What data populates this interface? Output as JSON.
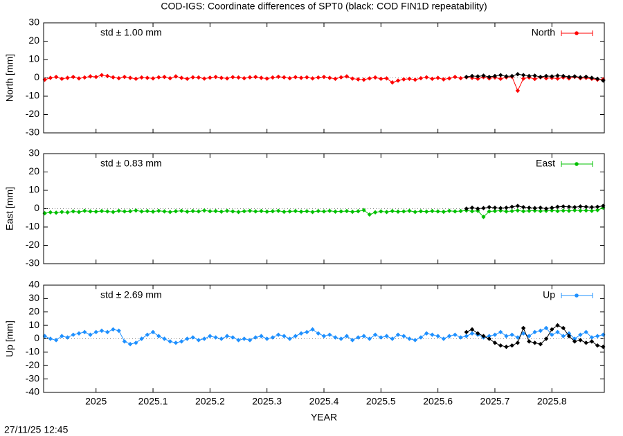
{
  "timestamp": "27/11/25 12:45",
  "chart_data": [
    {
      "type": "line",
      "title": "COD-IGS: Coordinate differences of SPT0 (black: COD FIN1D repeatability)",
      "ylabel": "North [mm]",
      "annotation": "std ± 1.00 mm",
      "xlim": [
        2024.908,
        2025.892
      ],
      "xticks": [
        2025,
        2025.1,
        2025.2,
        2025.3,
        2025.4,
        2025.5,
        2025.6,
        2025.7,
        2025.8
      ],
      "ylim": [
        -30,
        30
      ],
      "yticks": [
        -30,
        -20,
        -10,
        0,
        10,
        20,
        30
      ],
      "x": [
        2024.91,
        2024.92,
        2024.93,
        2024.94,
        2024.95,
        2024.96,
        2024.97,
        2024.98,
        2024.99,
        2025.0,
        2025.01,
        2025.02,
        2025.03,
        2025.04,
        2025.05,
        2025.06,
        2025.07,
        2025.08,
        2025.09,
        2025.1,
        2025.11,
        2025.12,
        2025.13,
        2025.14,
        2025.15,
        2025.16,
        2025.17,
        2025.18,
        2025.19,
        2025.2,
        2025.21,
        2025.22,
        2025.23,
        2025.24,
        2025.25,
        2025.26,
        2025.27,
        2025.28,
        2025.29,
        2025.3,
        2025.31,
        2025.32,
        2025.33,
        2025.34,
        2025.35,
        2025.36,
        2025.37,
        2025.38,
        2025.39,
        2025.4,
        2025.41,
        2025.42,
        2025.43,
        2025.44,
        2025.45,
        2025.46,
        2025.47,
        2025.48,
        2025.49,
        2025.5,
        2025.51,
        2025.52,
        2025.53,
        2025.54,
        2025.55,
        2025.56,
        2025.57,
        2025.58,
        2025.59,
        2025.6,
        2025.61,
        2025.62,
        2025.63,
        2025.64,
        2025.65,
        2025.66,
        2025.67,
        2025.68,
        2025.69,
        2025.7,
        2025.71,
        2025.72,
        2025.73,
        2025.74,
        2025.75,
        2025.76,
        2025.77,
        2025.78,
        2025.79,
        2025.8,
        2025.81,
        2025.82,
        2025.83,
        2025.84,
        2025.85,
        2025.86,
        2025.87,
        2025.88,
        2025.89
      ],
      "series": [
        {
          "name": "North",
          "color": "#ff0000",
          "values": [
            -1,
            0,
            0.5,
            -0.5,
            0,
            0.5,
            -0.3,
            0.2,
            0.8,
            0.5,
            1.5,
            1,
            0.3,
            -0.2,
            0.5,
            0,
            -0.5,
            0.2,
            0,
            -0.3,
            0.3,
            0.5,
            -0.2,
            0.8,
            0,
            -0.5,
            0.3,
            0.2,
            -0.4,
            0.1,
            0.5,
            0,
            -0.3,
            0.4,
            0.2,
            -0.2,
            0.3,
            0.5,
            0,
            -0.4,
            0.2,
            0.6,
            0.3,
            -0.2,
            0.4,
            0,
            0.3,
            -0.3,
            0.2,
            0.5,
            0,
            -0.5,
            0.3,
            0.8,
            -0.4,
            -0.8,
            -1,
            -0.3,
            0.2,
            -0.5,
            -0.3,
            -2.5,
            -1.5,
            -0.8,
            -0.5,
            -1,
            -0.2,
            0.3,
            -0.5,
            0,
            -0.8,
            -0.3,
            0.5,
            -0.2,
            0.3,
            0,
            -0.5,
            0.4,
            -0.3,
            0.2,
            -0.5,
            0.3,
            0.6,
            -7,
            -0.4,
            0.2,
            -0.6,
            0.3,
            -0.2,
            0,
            -0.4,
            0.2,
            -0.3,
            0.5,
            -0.2,
            0,
            -0.5,
            -1,
            -0.8
          ]
        },
        {
          "color": "#000000",
          "values": [
            null,
            null,
            null,
            null,
            null,
            null,
            null,
            null,
            null,
            null,
            null,
            null,
            null,
            null,
            null,
            null,
            null,
            null,
            null,
            null,
            null,
            null,
            null,
            null,
            null,
            null,
            null,
            null,
            null,
            null,
            null,
            null,
            null,
            null,
            null,
            null,
            null,
            null,
            null,
            null,
            null,
            null,
            null,
            null,
            null,
            null,
            null,
            null,
            null,
            null,
            null,
            null,
            null,
            null,
            null,
            null,
            null,
            null,
            null,
            null,
            null,
            null,
            null,
            null,
            null,
            null,
            null,
            null,
            null,
            null,
            null,
            null,
            null,
            null,
            0.5,
            1,
            0.8,
            1.2,
            0.5,
            1,
            1.5,
            0.8,
            1,
            2,
            1.5,
            1,
            1.2,
            0.5,
            1,
            0.8,
            1.2,
            1,
            0.5,
            0.8,
            0.3,
            0.6,
            0,
            -0.5,
            -1.5
          ]
        }
      ]
    },
    {
      "type": "line",
      "ylabel": "East [mm]",
      "annotation": "std ± 0.83 mm",
      "xlim": [
        2024.908,
        2025.892
      ],
      "xticks": [
        2025,
        2025.1,
        2025.2,
        2025.3,
        2025.4,
        2025.5,
        2025.6,
        2025.7,
        2025.8
      ],
      "ylim": [
        -30,
        30
      ],
      "yticks": [
        -30,
        -20,
        -10,
        0,
        10,
        20,
        30
      ],
      "x": [
        2024.91,
        2024.92,
        2024.93,
        2024.94,
        2024.95,
        2024.96,
        2024.97,
        2024.98,
        2024.99,
        2025.0,
        2025.01,
        2025.02,
        2025.03,
        2025.04,
        2025.05,
        2025.06,
        2025.07,
        2025.08,
        2025.09,
        2025.1,
        2025.11,
        2025.12,
        2025.13,
        2025.14,
        2025.15,
        2025.16,
        2025.17,
        2025.18,
        2025.19,
        2025.2,
        2025.21,
        2025.22,
        2025.23,
        2025.24,
        2025.25,
        2025.26,
        2025.27,
        2025.28,
        2025.29,
        2025.3,
        2025.31,
        2025.32,
        2025.33,
        2025.34,
        2025.35,
        2025.36,
        2025.37,
        2025.38,
        2025.39,
        2025.4,
        2025.41,
        2025.42,
        2025.43,
        2025.44,
        2025.45,
        2025.46,
        2025.47,
        2025.48,
        2025.49,
        2025.5,
        2025.51,
        2025.52,
        2025.53,
        2025.54,
        2025.55,
        2025.56,
        2025.57,
        2025.58,
        2025.59,
        2025.6,
        2025.61,
        2025.62,
        2025.63,
        2025.64,
        2025.65,
        2025.66,
        2025.67,
        2025.68,
        2025.69,
        2025.7,
        2025.71,
        2025.72,
        2025.73,
        2025.74,
        2025.75,
        2025.76,
        2025.77,
        2025.78,
        2025.79,
        2025.8,
        2025.81,
        2025.82,
        2025.83,
        2025.84,
        2025.85,
        2025.86,
        2025.87,
        2025.88,
        2025.89
      ],
      "series": [
        {
          "name": "East",
          "color": "#00c000",
          "values": [
            -2.5,
            -2,
            -2.2,
            -1.8,
            -2,
            -1.5,
            -1.8,
            -1.2,
            -1.5,
            -1.6,
            -1.3,
            -1.5,
            -1.8,
            -1.2,
            -1.5,
            -1.4,
            -1,
            -1.5,
            -1.3,
            -1.6,
            -1.2,
            -1.5,
            -1.8,
            -1.4,
            -1.2,
            -1.6,
            -1.3,
            -1.5,
            -1,
            -1.4,
            -1.3,
            -1.6,
            -1.2,
            -1.5,
            -1.8,
            -1.4,
            -1.2,
            -1.5,
            -1.3,
            -1.6,
            -1.4,
            -1.2,
            -1.7,
            -1.5,
            -1.3,
            -1.6,
            -1.4,
            -1.8,
            -1.3,
            -1.5,
            -1.2,
            -1.6,
            -1.5,
            -1.3,
            -1.7,
            -1.4,
            -0.8,
            -3.2,
            -2,
            -1.5,
            -1.8,
            -1.3,
            -1.6,
            -1.5,
            -1.2,
            -1.8,
            -1.4,
            -1.6,
            -1.3,
            -1.5,
            -1.7,
            -1.2,
            -1.5,
            -1.3,
            -1,
            -1.4,
            -1.2,
            -4.5,
            -1.5,
            -1.3,
            -1.1,
            -1.5,
            -1.3,
            -1,
            -1.4,
            -1.2,
            -1.1,
            -1.3,
            -1.2,
            -1,
            -1.3,
            -1.1,
            -1.2,
            -0.9,
            -1.1,
            -1,
            -1.2,
            -0.8,
            0.5
          ]
        },
        {
          "color": "#000000",
          "values": [
            null,
            null,
            null,
            null,
            null,
            null,
            null,
            null,
            null,
            null,
            null,
            null,
            null,
            null,
            null,
            null,
            null,
            null,
            null,
            null,
            null,
            null,
            null,
            null,
            null,
            null,
            null,
            null,
            null,
            null,
            null,
            null,
            null,
            null,
            null,
            null,
            null,
            null,
            null,
            null,
            null,
            null,
            null,
            null,
            null,
            null,
            null,
            null,
            null,
            null,
            null,
            null,
            null,
            null,
            null,
            null,
            null,
            null,
            null,
            null,
            null,
            null,
            null,
            null,
            null,
            null,
            null,
            null,
            null,
            null,
            null,
            null,
            null,
            null,
            0,
            0.5,
            0,
            0.3,
            0.8,
            0.5,
            0.3,
            0.5,
            1,
            1.5,
            0.8,
            0.5,
            0.3,
            0.5,
            0,
            0.5,
            1,
            1.2,
            1,
            0.8,
            1.2,
            1,
            0.8,
            1,
            1.5
          ]
        }
      ]
    },
    {
      "type": "line",
      "ylabel": "Up [mm]",
      "annotation": "std ± 2.69 mm",
      "xlabel": "YEAR",
      "xlim": [
        2024.908,
        2025.892
      ],
      "xticks": [
        2025,
        2025.1,
        2025.2,
        2025.3,
        2025.4,
        2025.5,
        2025.6,
        2025.7,
        2025.8
      ],
      "ylim": [
        -40,
        40
      ],
      "yticks": [
        -40,
        -30,
        -20,
        -10,
        0,
        10,
        20,
        30,
        40
      ],
      "x": [
        2024.91,
        2024.92,
        2024.93,
        2024.94,
        2024.95,
        2024.96,
        2024.97,
        2024.98,
        2024.99,
        2025.0,
        2025.01,
        2025.02,
        2025.03,
        2025.04,
        2025.05,
        2025.06,
        2025.07,
        2025.08,
        2025.09,
        2025.1,
        2025.11,
        2025.12,
        2025.13,
        2025.14,
        2025.15,
        2025.16,
        2025.17,
        2025.18,
        2025.19,
        2025.2,
        2025.21,
        2025.22,
        2025.23,
        2025.24,
        2025.25,
        2025.26,
        2025.27,
        2025.28,
        2025.29,
        2025.3,
        2025.31,
        2025.32,
        2025.33,
        2025.34,
        2025.35,
        2025.36,
        2025.37,
        2025.38,
        2025.39,
        2025.4,
        2025.41,
        2025.42,
        2025.43,
        2025.44,
        2025.45,
        2025.46,
        2025.47,
        2025.48,
        2025.49,
        2025.5,
        2025.51,
        2025.52,
        2025.53,
        2025.54,
        2025.55,
        2025.56,
        2025.57,
        2025.58,
        2025.59,
        2025.6,
        2025.61,
        2025.62,
        2025.63,
        2025.64,
        2025.65,
        2025.66,
        2025.67,
        2025.68,
        2025.69,
        2025.7,
        2025.71,
        2025.72,
        2025.73,
        2025.74,
        2025.75,
        2025.76,
        2025.77,
        2025.78,
        2025.79,
        2025.8,
        2025.81,
        2025.82,
        2025.83,
        2025.84,
        2025.85,
        2025.86,
        2025.87,
        2025.88,
        2025.89
      ],
      "series": [
        {
          "name": "Up",
          "color": "#1e90ff",
          "values": [
            2,
            0,
            -1,
            2,
            1,
            3,
            4,
            5,
            3,
            5,
            6,
            5,
            7,
            6,
            -2,
            -4,
            -3,
            0,
            3,
            5,
            2,
            0,
            -2,
            -3,
            -2,
            0,
            1,
            -1,
            0,
            2,
            1,
            0,
            2,
            1,
            -1,
            0,
            -1,
            1,
            2,
            0,
            1,
            3,
            2,
            0,
            2,
            4,
            5,
            7,
            4,
            2,
            3,
            1,
            0,
            2,
            -1,
            1,
            2,
            0,
            3,
            1,
            2,
            0,
            3,
            2,
            0,
            -1,
            1,
            4,
            3,
            2,
            0,
            2,
            3,
            1,
            2,
            4,
            3,
            1,
            2,
            3,
            5,
            2,
            3,
            1,
            4,
            2,
            5,
            6,
            8,
            3,
            5,
            2,
            4,
            0,
            3,
            5,
            1,
            2,
            3
          ]
        },
        {
          "color": "#000000",
          "values": [
            null,
            null,
            null,
            null,
            null,
            null,
            null,
            null,
            null,
            null,
            null,
            null,
            null,
            null,
            null,
            null,
            null,
            null,
            null,
            null,
            null,
            null,
            null,
            null,
            null,
            null,
            null,
            null,
            null,
            null,
            null,
            null,
            null,
            null,
            null,
            null,
            null,
            null,
            null,
            null,
            null,
            null,
            null,
            null,
            null,
            null,
            null,
            null,
            null,
            null,
            null,
            null,
            null,
            null,
            null,
            null,
            null,
            null,
            null,
            null,
            null,
            null,
            null,
            null,
            null,
            null,
            null,
            null,
            null,
            null,
            null,
            null,
            null,
            null,
            5,
            7,
            4,
            2,
            0,
            -3,
            -5,
            -6,
            -5,
            -3,
            8,
            -2,
            -3,
            -4,
            0,
            7,
            10,
            8,
            2,
            -2,
            -1,
            -3,
            -2,
            -5,
            -6
          ]
        }
      ]
    }
  ]
}
